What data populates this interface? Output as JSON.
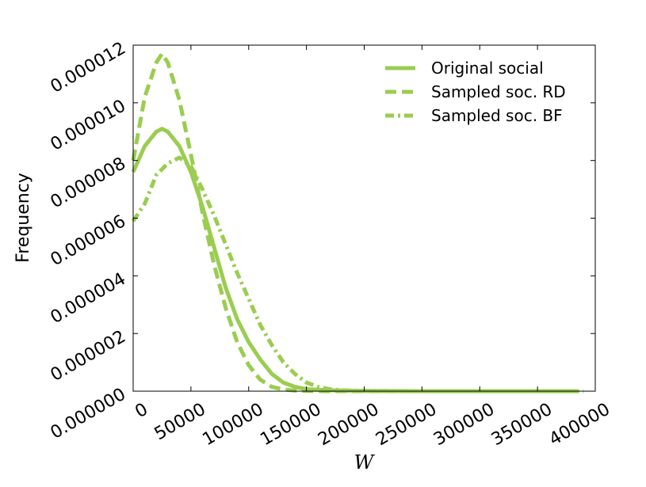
{
  "chart_data": {
    "type": "line",
    "xlabel": "W",
    "ylabel": "Frequency",
    "xlim": [
      0,
      400000
    ],
    "ylim": [
      0,
      1.2e-05
    ],
    "xticks": [
      "0",
      "50000",
      "100000",
      "150000",
      "200000",
      "250000",
      "300000",
      "350000",
      "400000"
    ],
    "yticks": [
      "0.000000",
      "0.000002",
      "0.000004",
      "0.000006",
      "0.000008",
      "0.000010",
      "0.000012"
    ],
    "grid": false,
    "legend_position": "top-right",
    "color": "#9acd50",
    "series": [
      {
        "name": "Original social",
        "style": "solid",
        "x": [
          0,
          10000,
          20000,
          25000,
          30000,
          40000,
          50000,
          60000,
          70000,
          80000,
          90000,
          100000,
          110000,
          120000,
          130000,
          140000,
          150000,
          170000,
          200000,
          250000,
          300000,
          350000,
          380000
        ],
        "y": [
          7.6e-06,
          8.5e-06,
          9e-06,
          9.1e-06,
          9e-06,
          8.5e-06,
          7.6e-06,
          6.4e-06,
          5e-06,
          3.6e-06,
          2.5e-06,
          1.7e-06,
          1.1e-06,
          6e-07,
          3e-07,
          1.5e-07,
          7e-08,
          3e-08,
          1e-08,
          0.0,
          0.0,
          0.0,
          0.0
        ]
      },
      {
        "name": "Sampled soc. RD",
        "style": "dashed",
        "x": [
          0,
          10000,
          20000,
          25000,
          30000,
          40000,
          50000,
          60000,
          70000,
          80000,
          90000,
          100000,
          110000,
          120000,
          130000,
          140000,
          150000,
          170000,
          200000,
          250000,
          300000,
          350000,
          380000
        ],
        "y": [
          8e-06,
          1.02e-05,
          1.14e-05,
          1.17e-05,
          1.14e-05,
          1.01e-05,
          8.2e-06,
          6.2e-06,
          4.4e-06,
          2.9e-06,
          1.7e-06,
          9e-07,
          4e-07,
          1.5e-07,
          6e-08,
          2e-08,
          1e-08,
          0.0,
          0.0,
          0.0,
          0.0,
          0.0,
          0.0
        ]
      },
      {
        "name": "Sampled soc. BF",
        "style": "dashdot",
        "x": [
          0,
          10000,
          20000,
          30000,
          40000,
          50000,
          60000,
          70000,
          80000,
          90000,
          100000,
          110000,
          120000,
          130000,
          140000,
          150000,
          160000,
          170000,
          180000,
          200000,
          250000,
          300000,
          350000,
          390000
        ],
        "y": [
          5.9e-06,
          6.5e-06,
          7.5e-06,
          7.9e-06,
          8.1e-06,
          7.8e-06,
          7e-06,
          6.1e-06,
          5.1e-06,
          4.1e-06,
          3.2e-06,
          2.3e-06,
          1.6e-06,
          1e-06,
          6e-07,
          3e-07,
          1.5e-07,
          7e-08,
          3e-08,
          1e-08,
          0.0,
          0.0,
          0.0,
          0.0
        ]
      }
    ]
  }
}
